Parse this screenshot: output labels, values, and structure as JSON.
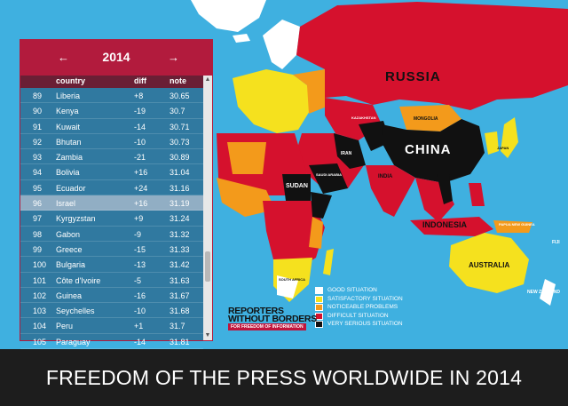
{
  "map": {
    "labels": {
      "russia": "RUSSIA",
      "china": "CHINA",
      "india": "INDIA",
      "indonesia": "INDONESIA",
      "australia": "AUSTRALIA",
      "sudan": "SUDAN",
      "mongolia": "MONGOLIA",
      "iran": "IRAN",
      "kazakhstan": "KAZAKHSTAN",
      "saudi_arabia": "SAUDI ARABIA",
      "japan": "JAPAN",
      "south_africa": "SOUTH AFRICA",
      "papua": "PAPUA NEW GUINEA",
      "fiji": "FIJI",
      "new_zealand": "NEW ZEALAND"
    }
  },
  "ranking": {
    "year": "2014",
    "prev_arrow": "←",
    "next_arrow": "→",
    "columns": {
      "country": "country",
      "diff": "diff",
      "note": "note"
    },
    "rows": [
      {
        "rank": "89",
        "country": "Liberia",
        "diff": "+8",
        "note": "30.65"
      },
      {
        "rank": "90",
        "country": "Kenya",
        "diff": "-19",
        "note": "30.7"
      },
      {
        "rank": "91",
        "country": "Kuwait",
        "diff": "-14",
        "note": "30.71"
      },
      {
        "rank": "92",
        "country": "Bhutan",
        "diff": "-10",
        "note": "30.73"
      },
      {
        "rank": "93",
        "country": "Zambia",
        "diff": "-21",
        "note": "30.89"
      },
      {
        "rank": "94",
        "country": "Bolivia",
        "diff": "+16",
        "note": "31.04"
      },
      {
        "rank": "95",
        "country": "Ecuador",
        "diff": "+24",
        "note": "31.16"
      },
      {
        "rank": "96",
        "country": "Israel",
        "diff": "+16",
        "note": "31.19"
      },
      {
        "rank": "97",
        "country": "Kyrgyzstan",
        "diff": "+9",
        "note": "31.24"
      },
      {
        "rank": "98",
        "country": "Gabon",
        "diff": "-9",
        "note": "31.32"
      },
      {
        "rank": "99",
        "country": "Greece",
        "diff": "-15",
        "note": "31.33"
      },
      {
        "rank": "100",
        "country": "Bulgaria",
        "diff": "-13",
        "note": "31.42"
      },
      {
        "rank": "101",
        "country": "Côte d'Ivoire",
        "diff": "-5",
        "note": "31.63"
      },
      {
        "rank": "102",
        "country": "Guinea",
        "diff": "-16",
        "note": "31.67"
      },
      {
        "rank": "103",
        "country": "Seychelles",
        "diff": "-10",
        "note": "31.68"
      },
      {
        "rank": "104",
        "country": "Peru",
        "diff": "+1",
        "note": "31.7"
      },
      {
        "rank": "105",
        "country": "Paraguay",
        "diff": "-14",
        "note": "31.81"
      }
    ]
  },
  "legend": [
    {
      "label": "GOOD SITUATION",
      "color": "#ffffff"
    },
    {
      "label": "SATISFACTORY SITUATION",
      "color": "#f5e11e"
    },
    {
      "label": "NOTICEABLE PROBLEMS",
      "color": "#f39a1b"
    },
    {
      "label": "DIFFICULT SITUATION",
      "color": "#d5112d"
    },
    {
      "label": "VERY SERIOUS SITUATION",
      "color": "#111111"
    }
  ],
  "logo": {
    "line1": "REPORTERS",
    "line2": "WITHOUT BORDERS",
    "tagline": "FOR FREEDOM OF INFORMATION"
  },
  "footer": {
    "title": "FREEDOM OF THE PRESS WORLDWIDE IN 2014"
  },
  "colors": {
    "ocean": "#3fb0e0",
    "good": "#ffffff",
    "satisfactory": "#f5e11e",
    "noticeable": "#f39a1b",
    "difficult": "#d5112d",
    "very_serious": "#111111",
    "panel_header": "#b21b3d"
  }
}
